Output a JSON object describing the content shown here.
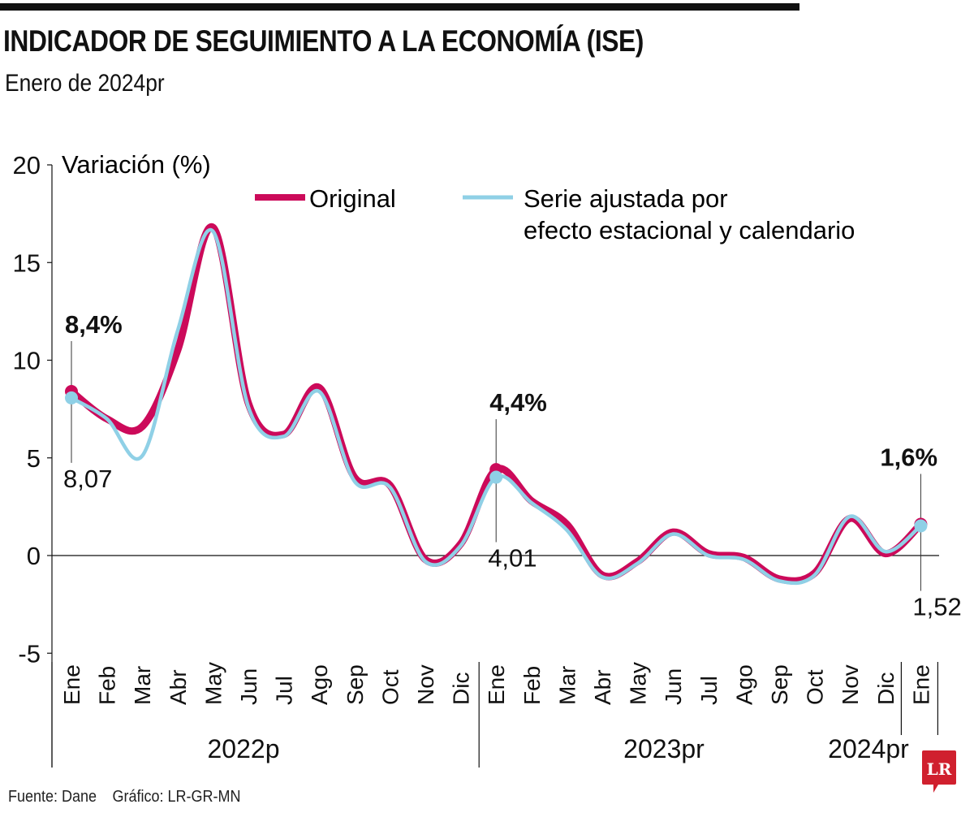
{
  "header": {
    "title": "INDICADOR DE SEGUIMIENTO A LA ECONOMÍA (ISE)",
    "subtitle": "Enero de 2024pr"
  },
  "footer": {
    "source": "Fuente: Dane",
    "credit": "Gráfico: LR-GR-MN"
  },
  "logo": {
    "text": "LR",
    "color": "#d0202e"
  },
  "colors": {
    "original": "#cc0a5a",
    "adjusted": "#8fd0e6",
    "axis": "#111111"
  },
  "chart_data": {
    "type": "line",
    "title": "INDICADOR DE SEGUIMIENTO A LA ECONOMÍA (ISE)",
    "subtitle": "Enero de 2024pr",
    "ylabel": "Variación (%)",
    "xlabel": "",
    "ylim": [
      -5,
      20
    ],
    "yticks": [
      20,
      15,
      10,
      5,
      0,
      -5
    ],
    "grid": false,
    "legend_position": "top-right",
    "categories": [
      "Ene",
      "Feb",
      "Mar",
      "Abr",
      "May",
      "Jun",
      "Jul",
      "Ago",
      "Sep",
      "Oct",
      "Nov",
      "Dic",
      "Ene",
      "Feb",
      "Mar",
      "Abr",
      "May",
      "Jun",
      "Jul",
      "Ago",
      "Sep",
      "Oct",
      "Nov",
      "Dic",
      "Ene"
    ],
    "year_groups": [
      {
        "label": "2022p",
        "start": 0,
        "end": 11
      },
      {
        "label": "2023pr",
        "start": 12,
        "end": 23
      },
      {
        "label": "2024pr",
        "start": 24,
        "end": 24
      }
    ],
    "series": [
      {
        "name": "Original",
        "values": [
          8.4,
          7.0,
          6.6,
          10.5,
          16.8,
          7.8,
          6.2,
          8.6,
          4.0,
          3.6,
          -0.2,
          0.6,
          4.4,
          2.8,
          1.6,
          -1.0,
          -0.3,
          1.2,
          0.1,
          -0.1,
          -1.2,
          -0.9,
          1.9,
          0.1,
          1.6
        ]
      },
      {
        "name": "Serie ajustada por efecto estacional y calendario",
        "values": [
          8.07,
          7.0,
          5.1,
          11.5,
          16.6,
          7.6,
          6.1,
          8.4,
          3.8,
          3.5,
          -0.3,
          0.5,
          4.01,
          2.7,
          1.3,
          -1.1,
          -0.4,
          1.1,
          0.0,
          -0.2,
          -1.3,
          -1.0,
          2.0,
          0.2,
          1.52
        ]
      }
    ],
    "legend": {
      "original": "Original",
      "adjusted_line1": "Serie ajustada por",
      "adjusted_line2": "efecto estacional y calendario"
    },
    "annotations": [
      {
        "index": 0,
        "original_label": "8,4%",
        "adjusted_label": "8,07"
      },
      {
        "index": 12,
        "original_label": "4,4%",
        "adjusted_label": "4,01"
      },
      {
        "index": 24,
        "original_label": "1,6%",
        "adjusted_label": "1,52"
      }
    ]
  }
}
